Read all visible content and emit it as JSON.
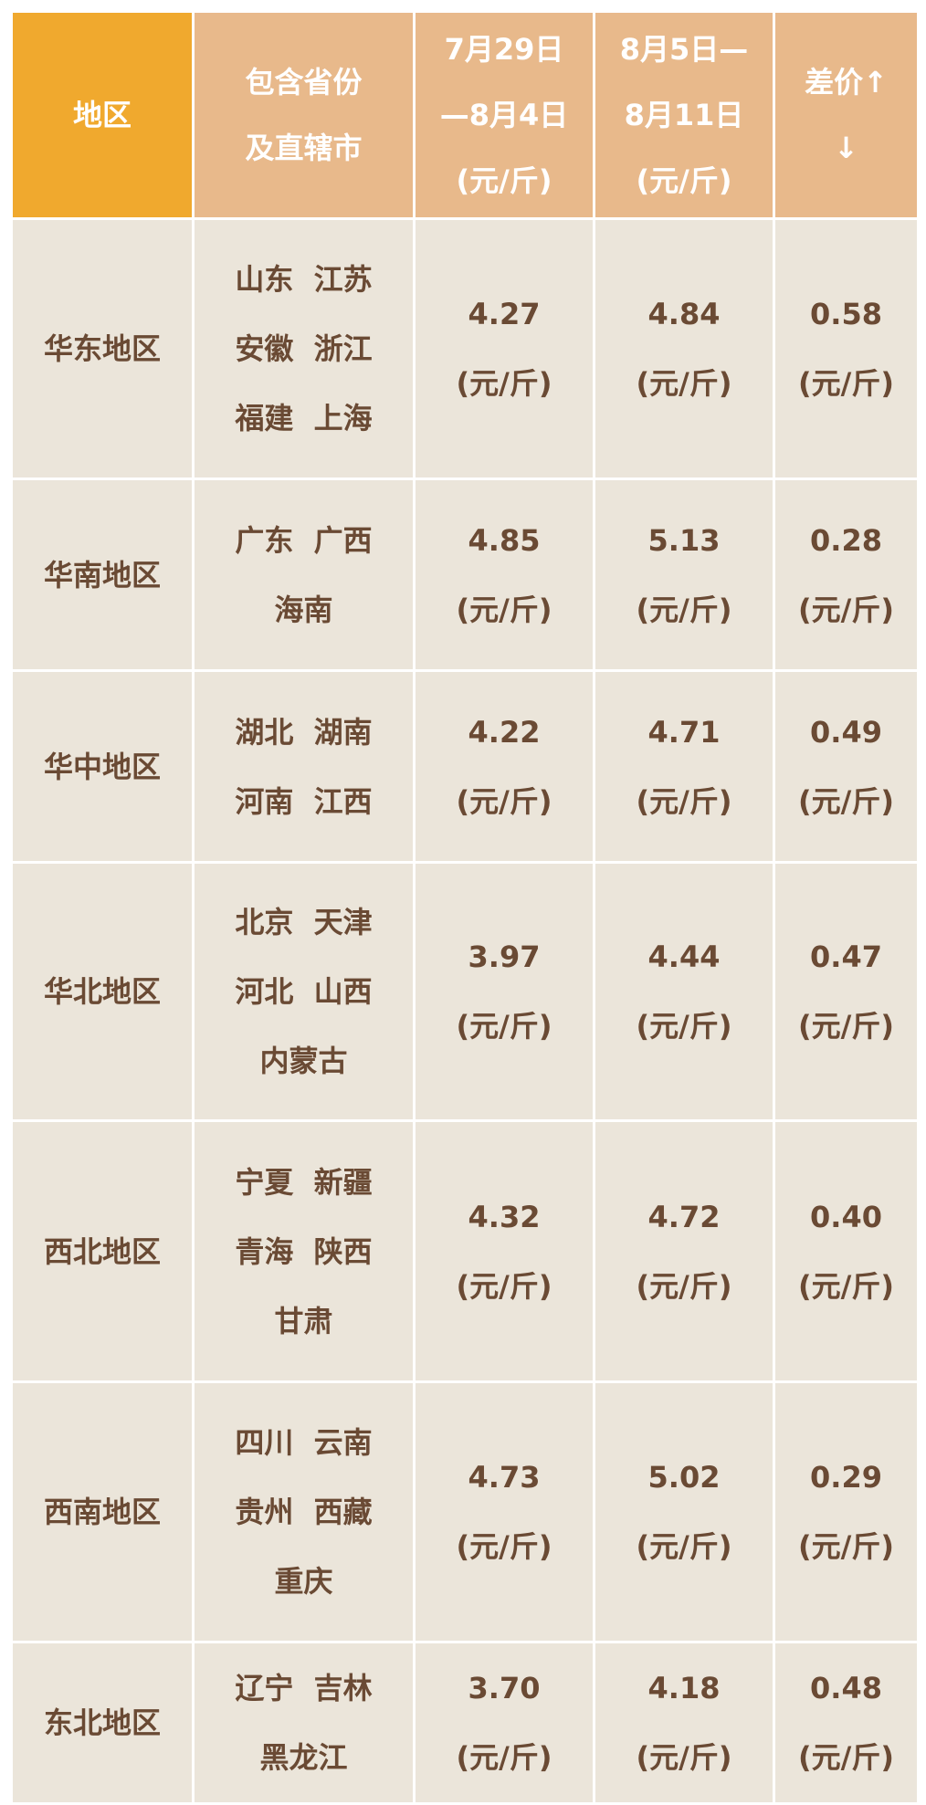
{
  "table": {
    "header": [
      [
        "地区"
      ],
      [
        "包含省份",
        "及直辖市"
      ],
      [
        "7月29日",
        "—8月4日",
        "(元/斤)"
      ],
      [
        "8月5日—",
        "8月11日",
        "(元/斤)"
      ],
      [
        "差价↑",
        "↓"
      ]
    ],
    "rows": [
      {
        "region": "华东地区",
        "provinces": [
          "山东  江苏",
          "安徽  浙江",
          "福建  上海"
        ],
        "prices": [
          [
            "4.27",
            "(元/斤)"
          ],
          [
            "4.84",
            "(元/斤)"
          ],
          [
            "0.58",
            "(元/斤)"
          ]
        ]
      },
      {
        "region": "华南地区",
        "provinces": [
          "广东  广西",
          "海南"
        ],
        "prices": [
          [
            "4.85",
            "(元/斤)"
          ],
          [
            "5.13",
            "(元/斤)"
          ],
          [
            "0.28",
            "(元/斤)"
          ]
        ]
      },
      {
        "region": "华中地区",
        "provinces": [
          "湖北  湖南",
          "河南  江西"
        ],
        "prices": [
          [
            "4.22",
            "(元/斤)"
          ],
          [
            "4.71",
            "(元/斤)"
          ],
          [
            "0.49",
            "(元/斤)"
          ]
        ]
      },
      {
        "region": "华北地区",
        "provinces": [
          "北京  天津",
          "河北  山西",
          "内蒙古"
        ],
        "prices": [
          [
            "3.97",
            "(元/斤)"
          ],
          [
            "4.44",
            "(元/斤)"
          ],
          [
            "0.47",
            "(元/斤)"
          ]
        ]
      },
      {
        "region": "西北地区",
        "provinces": [
          "宁夏  新疆",
          "青海  陕西",
          "甘肃"
        ],
        "prices": [
          [
            "4.32",
            "(元/斤)"
          ],
          [
            "4.72",
            "(元/斤)"
          ],
          [
            "0.40",
            "(元/斤)"
          ]
        ]
      },
      {
        "region": "西南地区",
        "provinces": [
          "四川  云南",
          "贵州  西藏",
          "重庆"
        ],
        "prices": [
          [
            "4.73",
            "(元/斤)"
          ],
          [
            "5.02",
            "(元/斤)"
          ],
          [
            "0.29",
            "(元/斤)"
          ]
        ]
      },
      {
        "region": "东北地区",
        "provinces": [
          "辽宁  吉林",
          "黑龙江"
        ],
        "prices": [
          [
            "3.70",
            "(元/斤)"
          ],
          [
            "4.18",
            "(元/斤)"
          ],
          [
            "0.48",
            "(元/斤)"
          ]
        ]
      }
    ]
  }
}
